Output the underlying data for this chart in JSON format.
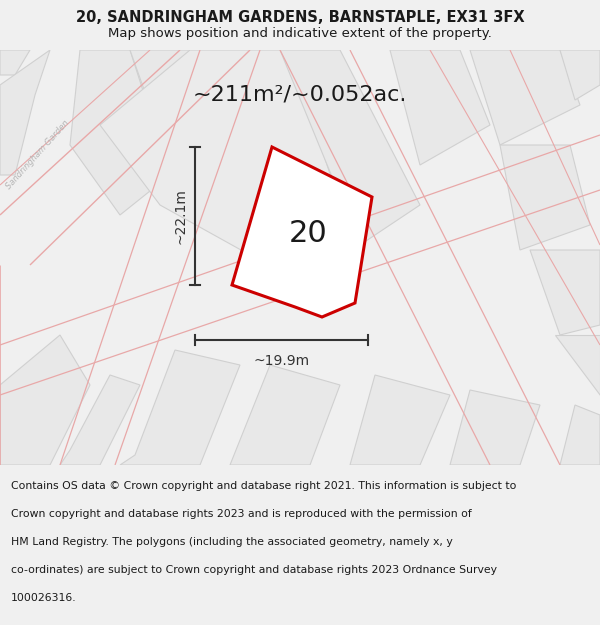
{
  "title": "20, SANDRINGHAM GARDENS, BARNSTAPLE, EX31 3FX",
  "subtitle": "Map shows position and indicative extent of the property.",
  "area_label": "~211m²/~0.052ac.",
  "width_label": "~19.9m",
  "height_label": "~22.1m",
  "plot_number": "20",
  "footer_line1": "Contains OS data © Crown copyright and database right 2021. This information is subject to",
  "footer_line2": "Crown copyright and database rights 2023 and is reproduced with the permission of",
  "footer_line3": "HM Land Registry. The polygons (including the associated geometry, namely x, y",
  "footer_line4": "co-ordinates) are subject to Crown copyright and database rights 2023 Ordnance Survey",
  "footer_line5": "100026316.",
  "bg_color": "#f0f0f0",
  "map_bg": "#ffffff",
  "footer_bg": "#ffffff",
  "plot_fill": "#ffffff",
  "plot_outline": "#cc0000",
  "dim_color": "#333333",
  "text_color": "#1a1a1a",
  "street_label_color": "#b5b5b5",
  "building_fill": "#e8e8e8",
  "building_edge": "#d0d0d0",
  "road_fill": "#f0f0f0",
  "pink_line": "#e8a8a8",
  "title_fontsize": 10.5,
  "subtitle_fontsize": 9.5,
  "area_fontsize": 16,
  "plot_num_fontsize": 22,
  "dim_fontsize": 10,
  "footer_fontsize": 7.8
}
